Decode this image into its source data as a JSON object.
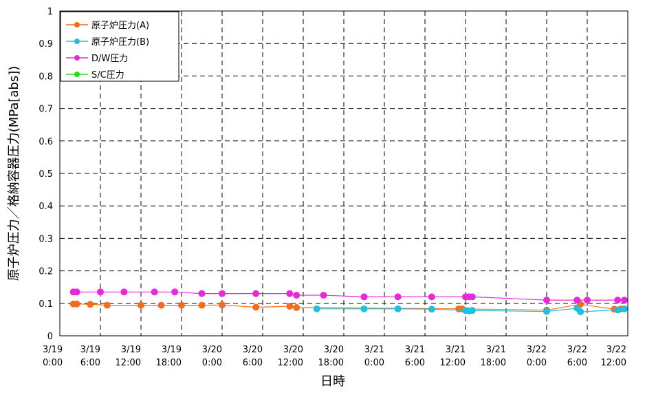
{
  "chart_data": {
    "type": "line",
    "xlabel": "日時",
    "ylabel": "原子炉圧力／格納容器圧力(MPa[abs])",
    "xlim": [
      "2011-03-19 00:00",
      "2011-03-22 12:00"
    ],
    "ylim": [
      0,
      1
    ],
    "y_ticks": [
      "0",
      "0.1",
      "0.2",
      "0.3",
      "0.4",
      "0.5",
      "0.6",
      "0.7",
      "0.8",
      "0.9",
      "1"
    ],
    "x_ticks": [
      {
        "date": "3/19",
        "time": "0:00"
      },
      {
        "date": "3/19",
        "time": "6:00"
      },
      {
        "date": "3/19",
        "time": "12:00"
      },
      {
        "date": "3/19",
        "time": "18:00"
      },
      {
        "date": "3/20",
        "time": "0:00"
      },
      {
        "date": "3/20",
        "time": "6:00"
      },
      {
        "date": "3/20",
        "time": "12:00"
      },
      {
        "date": "3/20",
        "time": "18:00"
      },
      {
        "date": "3/21",
        "time": "0:00"
      },
      {
        "date": "3/21",
        "time": "6:00"
      },
      {
        "date": "3/21",
        "time": "12:00"
      },
      {
        "date": "3/21",
        "time": "18:00"
      },
      {
        "date": "3/22",
        "time": "0:00"
      },
      {
        "date": "3/22",
        "time": "6:00"
      },
      {
        "date": "3/22",
        "time": "12:00"
      }
    ],
    "grid": true,
    "legend_position": "top-left",
    "series": [
      {
        "name": "原子炉圧力(A)",
        "color": "#f36d1c",
        "points": [
          [
            "2011-03-19 02:00",
            0.098
          ],
          [
            "2011-03-19 02:30",
            0.098
          ],
          [
            "2011-03-19 04:30",
            0.097
          ],
          [
            "2011-03-19 07:00",
            0.094
          ],
          [
            "2011-03-19 12:00",
            0.094
          ],
          [
            "2011-03-19 15:00",
            0.094
          ],
          [
            "2011-03-19 18:00",
            0.094
          ],
          [
            "2011-03-19 21:00",
            0.094
          ],
          [
            "2011-03-20 00:00",
            0.095
          ],
          [
            "2011-03-20 05:00",
            0.088
          ],
          [
            "2011-03-20 10:00",
            0.091
          ],
          [
            "2011-03-20 11:00",
            0.087
          ],
          [
            "2011-03-21 11:00",
            0.083
          ],
          [
            "2011-03-21 11:30",
            0.083
          ],
          [
            "2011-03-22 00:00",
            0.079
          ],
          [
            "2011-03-22 05:00",
            0.097
          ],
          [
            "2011-03-22 10:00",
            0.082
          ],
          [
            "2011-03-22 11:00",
            0.083
          ]
        ]
      },
      {
        "name": "原子炉圧力(B)",
        "color": "#1fbfdf",
        "points": [
          [
            "2011-03-20 14:00",
            0.083
          ],
          [
            "2011-03-20 21:00",
            0.083
          ],
          [
            "2011-03-21 02:00",
            0.083
          ],
          [
            "2011-03-21 07:00",
            0.082
          ],
          [
            "2011-03-21 12:00",
            0.078
          ],
          [
            "2011-03-21 12:30",
            0.077
          ],
          [
            "2011-03-21 13:00",
            0.078
          ],
          [
            "2011-03-22 00:00",
            0.075
          ],
          [
            "2011-03-22 04:30",
            0.085
          ],
          [
            "2011-03-22 05:00",
            0.074
          ],
          [
            "2011-03-22 10:30",
            0.08
          ],
          [
            "2011-03-22 11:30",
            0.083
          ]
        ]
      },
      {
        "name": "D/W圧力",
        "color": "#e52ad9",
        "points": [
          [
            "2011-03-19 02:00",
            0.135
          ],
          [
            "2011-03-19 02:30",
            0.135
          ],
          [
            "2011-03-19 06:00",
            0.135
          ],
          [
            "2011-03-19 09:30",
            0.135
          ],
          [
            "2011-03-19 14:00",
            0.135
          ],
          [
            "2011-03-19 17:00",
            0.135
          ],
          [
            "2011-03-19 21:00",
            0.13
          ],
          [
            "2011-03-20 00:00",
            0.13
          ],
          [
            "2011-03-20 05:00",
            0.13
          ],
          [
            "2011-03-20 10:00",
            0.13
          ],
          [
            "2011-03-20 11:00",
            0.125
          ],
          [
            "2011-03-20 15:00",
            0.125
          ],
          [
            "2011-03-20 21:00",
            0.12
          ],
          [
            "2011-03-21 02:00",
            0.12
          ],
          [
            "2011-03-21 07:00",
            0.12
          ],
          [
            "2011-03-21 12:00",
            0.12
          ],
          [
            "2011-03-21 12:30",
            0.12
          ],
          [
            "2011-03-21 13:00",
            0.12
          ],
          [
            "2011-03-22 00:00",
            0.11
          ],
          [
            "2011-03-22 04:30",
            0.11
          ],
          [
            "2011-03-22 06:00",
            0.11
          ],
          [
            "2011-03-22 10:30",
            0.11
          ],
          [
            "2011-03-22 11:30",
            0.11
          ]
        ]
      },
      {
        "name": "S/C圧力",
        "color": "#22dd22",
        "points": []
      }
    ]
  }
}
